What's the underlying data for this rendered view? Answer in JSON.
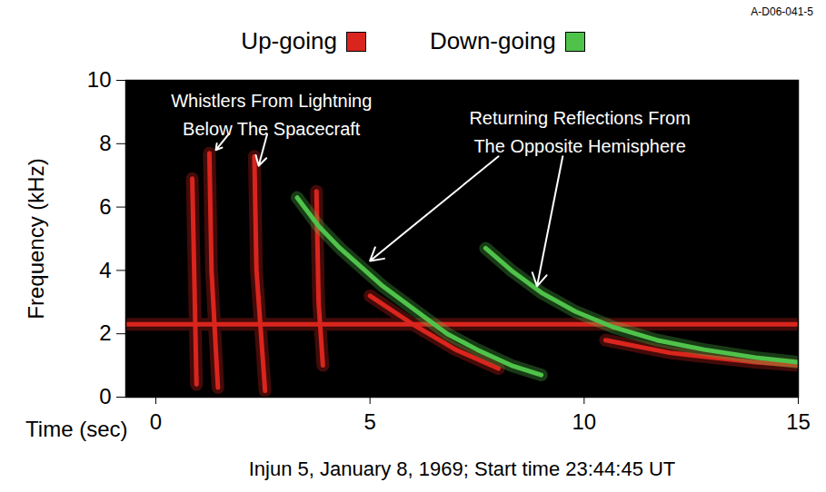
{
  "chart_data": {
    "type": "line",
    "figure_id": "A-D06-041-5",
    "xlabel": "Time (sec)",
    "ylabel": "Frequency (kHz)",
    "caption": "Injun 5, January 8, 1969; Start time 23:44:45 UT",
    "xlim": [
      -0.7,
      15
    ],
    "ylim": [
      0,
      10
    ],
    "xticks": [
      0,
      5,
      10,
      15
    ],
    "yticks": [
      0,
      2,
      4,
      6,
      8,
      10
    ],
    "legend": "top",
    "series": [
      {
        "name": "Up-going",
        "color": "#d9251d",
        "x": [
          0.85,
          0.95,
          null,
          1.25,
          1.3,
          1.45,
          null,
          2.3,
          2.35,
          2.55,
          null,
          3.75,
          3.8,
          3.9,
          null,
          -0.7,
          15,
          null,
          5.0,
          6.0,
          7.0,
          8.0,
          null,
          10.5,
          12.0,
          14.0,
          15.0
        ],
        "y": [
          6.9,
          0.4,
          null,
          7.7,
          4.0,
          0.3,
          null,
          7.6,
          4.0,
          0.2,
          null,
          6.5,
          3.0,
          1.0,
          null,
          2.3,
          2.3,
          null,
          3.2,
          2.3,
          1.5,
          0.9,
          null,
          1.8,
          1.4,
          1.1,
          1.0
        ]
      },
      {
        "name": "Down-going",
        "color": "#4fc24a",
        "x": [
          3.3,
          3.8,
          4.3,
          4.8,
          5.3,
          6.0,
          6.8,
          7.5,
          8.3,
          9.0,
          null,
          7.7,
          8.3,
          9.0,
          9.8,
          10.7,
          11.7,
          12.8,
          14.0,
          15.0
        ],
        "y": [
          6.3,
          5.4,
          4.7,
          4.1,
          3.5,
          2.8,
          2.0,
          1.5,
          1.0,
          0.7,
          null,
          4.7,
          4.0,
          3.3,
          2.7,
          2.2,
          1.8,
          1.5,
          1.25,
          1.1
        ]
      }
    ],
    "annotations": [
      {
        "text": "Whistlers From Lightning Below The Spacecraft",
        "x": 2.7,
        "y": 9.0,
        "targets": [
          {
            "from": [
              1.7,
              8.3
            ],
            "to": [
              1.4,
              7.8
            ]
          },
          {
            "from": [
              2.6,
              8.3
            ],
            "to": [
              2.4,
              7.3
            ]
          }
        ]
      },
      {
        "text": "Returning Reflections From The Opposite Hemisphere",
        "x": 9.9,
        "y": 8.45,
        "targets": [
          {
            "from": [
              8.0,
              7.6
            ],
            "to": [
              5.0,
              4.3
            ]
          },
          {
            "from": [
              9.5,
              7.6
            ],
            "to": [
              8.9,
              3.5
            ]
          }
        ]
      }
    ]
  }
}
